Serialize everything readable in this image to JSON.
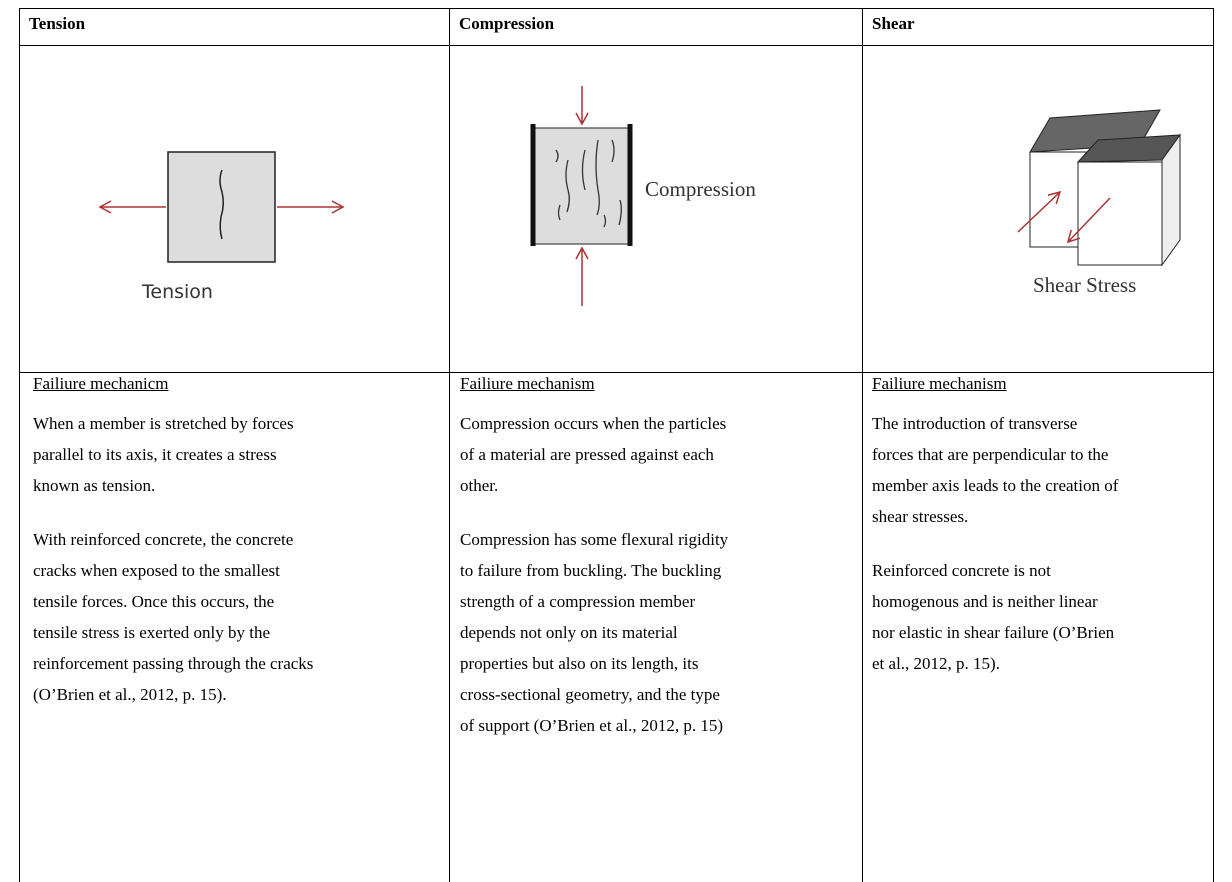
{
  "header": [
    "Tension",
    "Compression",
    "Shear"
  ],
  "images": [
    {
      "label": "Tension"
    },
    {
      "label": "Compression"
    },
    {
      "label": "Shear Stress"
    }
  ],
  "columns": [
    {
      "heading": "Failiure mechanicm",
      "paragraphs": [
        [
          "When a member is stretched by forces",
          "parallel to its axis, it creates a stress",
          "known as tension."
        ],
        [
          "With reinforced concrete, the concrete",
          "cracks when exposed to the smallest",
          "tensile forces. Once this occurs, the",
          "tensile stress is exerted only by the",
          "reinforcement passing through the cracks",
          "(O’Brien et al., 2012, p. 15)."
        ]
      ]
    },
    {
      "heading": "Failiure mechanism",
      "paragraphs": [
        [
          "Compression occurs when the particles",
          "of a material are pressed against each",
          "other."
        ],
        [
          "Compression has some flexural rigidity",
          "to failure from buckling. The buckling",
          "strength of a compression member",
          "depends not only on its material",
          "properties but also on its length, its",
          "cross-sectional geometry, and the type",
          "of support (O’Brien et al., 2012, p. 15)"
        ]
      ]
    },
    {
      "heading": "Failiure mechanism",
      "paragraphs": [
        [
          "The introduction of transverse",
          "forces that are perpendicular to the",
          "member axis leads to the creation of",
          "shear stresses."
        ],
        [
          "Reinforced concrete is not",
          "homogenous and is neither linear",
          "nor elastic in shear failure (O’Brien",
          "et al., 2012, p. 15)."
        ]
      ]
    }
  ]
}
